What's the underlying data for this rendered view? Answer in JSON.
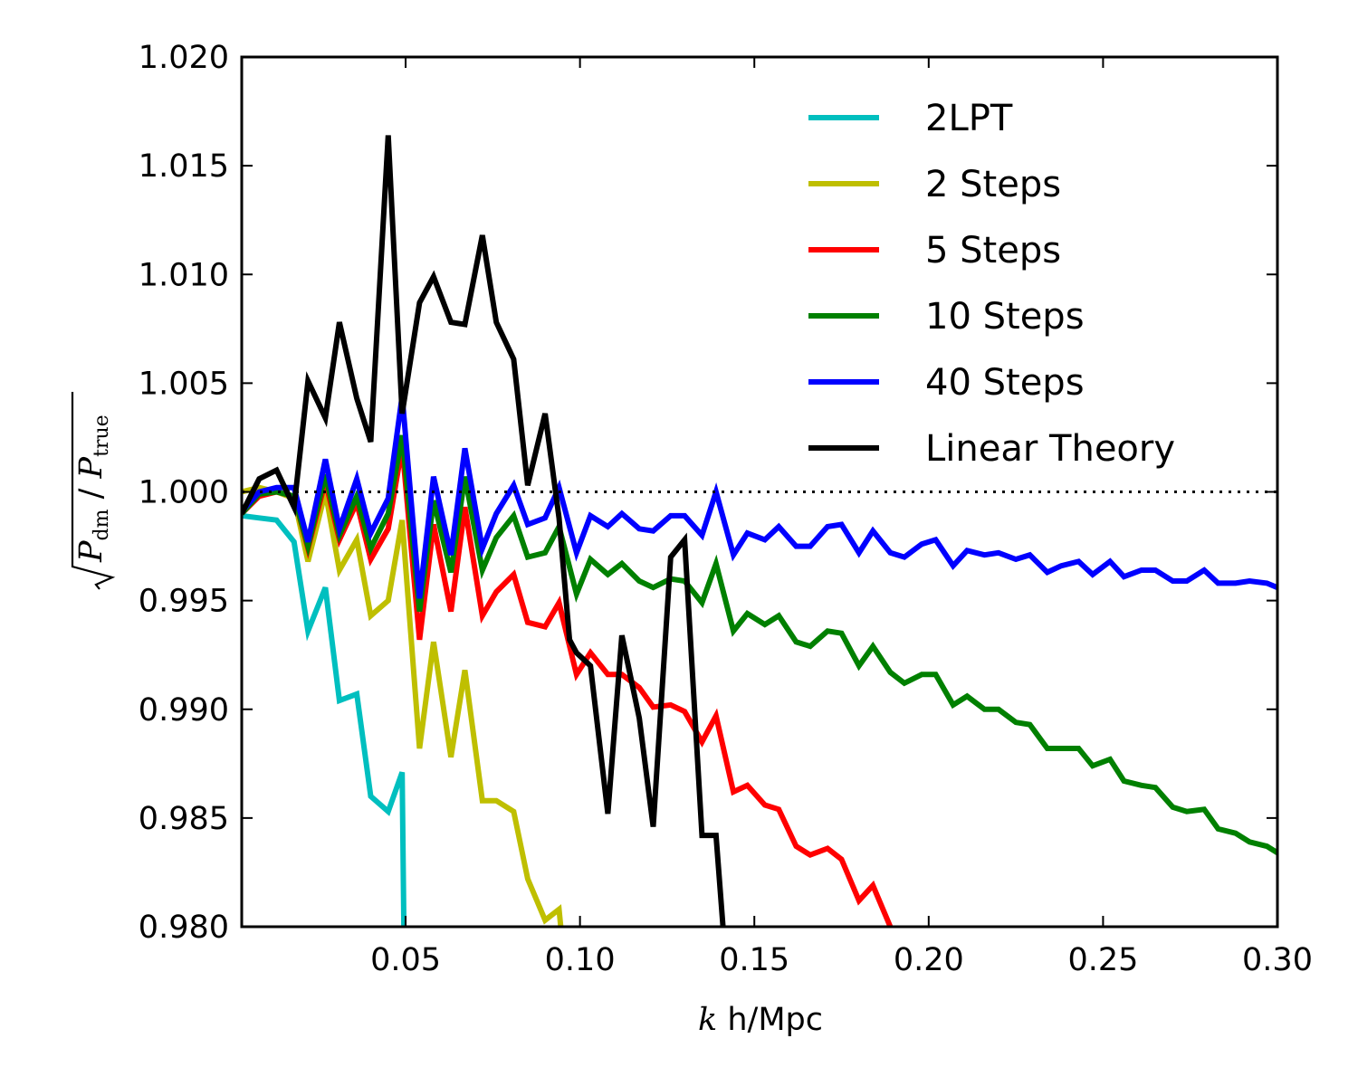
{
  "chart_data": {
    "type": "line",
    "title": "",
    "xlabel_var": "k",
    "xlabel_units": "h/Mpc",
    "ylabel_var": "P",
    "ylabel_sub_num": "dm",
    "ylabel_sub_den": "true",
    "xlim": [
      0.003,
      0.3
    ],
    "ylim": [
      0.98,
      1.02
    ],
    "xticks": [
      0.05,
      0.1,
      0.15,
      0.2,
      0.25,
      0.3
    ],
    "xtick_labels": [
      "0.05",
      "0.10",
      "0.15",
      "0.20",
      "0.25",
      "0.30"
    ],
    "yticks": [
      0.98,
      0.985,
      0.99,
      0.995,
      1.0,
      1.005,
      1.01,
      1.015,
      1.02
    ],
    "ytick_labels": [
      "0.980",
      "0.985",
      "0.990",
      "0.995",
      "1.000",
      "1.005",
      "1.010",
      "1.015",
      "1.020"
    ],
    "reference_line": {
      "y": 1.0,
      "style": "dotted"
    },
    "legend_position": "top-right",
    "series": [
      {
        "name": "2LPT",
        "color": "#00bfbf",
        "x": [
          0.003,
          0.008,
          0.013,
          0.018,
          0.022,
          0.027,
          0.031,
          0.036,
          0.04,
          0.045,
          0.049,
          0.0495
        ],
        "y": [
          0.9989,
          0.9988,
          0.9987,
          0.9977,
          0.9936,
          0.9956,
          0.9904,
          0.9907,
          0.986,
          0.9853,
          0.9871,
          0.98
        ]
      },
      {
        "name": "2 Steps",
        "color": "#bfbf00",
        "x": [
          0.003,
          0.008,
          0.013,
          0.018,
          0.022,
          0.027,
          0.031,
          0.036,
          0.04,
          0.045,
          0.049,
          0.054,
          0.058,
          0.063,
          0.067,
          0.072,
          0.076,
          0.081,
          0.085,
          0.09,
          0.094,
          0.0945
        ],
        "y": [
          1.0,
          1.0002,
          1.0,
          0.9997,
          0.9968,
          1.0,
          0.9964,
          0.9978,
          0.9943,
          0.995,
          0.9987,
          0.9882,
          0.9931,
          0.9878,
          0.9918,
          0.9858,
          0.9858,
          0.9853,
          0.9822,
          0.9803,
          0.9808,
          0.98
        ]
      },
      {
        "name": "5 Steps",
        "color": "#ff0000",
        "x": [
          0.003,
          0.008,
          0.013,
          0.018,
          0.022,
          0.027,
          0.031,
          0.036,
          0.04,
          0.045,
          0.049,
          0.054,
          0.058,
          0.063,
          0.067,
          0.072,
          0.076,
          0.081,
          0.085,
          0.09,
          0.094,
          0.099,
          0.103,
          0.108,
          0.112,
          0.117,
          0.121,
          0.126,
          0.13,
          0.135,
          0.139,
          0.144,
          0.148,
          0.153,
          0.157,
          0.162,
          0.166,
          0.171,
          0.175,
          0.18,
          0.184,
          0.189
        ],
        "y": [
          0.999,
          0.9998,
          1.0,
          0.9998,
          0.9974,
          1.0005,
          0.9978,
          0.9995,
          0.9969,
          0.9983,
          1.0021,
          0.9932,
          0.9985,
          0.9945,
          0.9993,
          0.9943,
          0.9954,
          0.9962,
          0.994,
          0.9938,
          0.9949,
          0.9916,
          0.9926,
          0.9916,
          0.9916,
          0.991,
          0.9901,
          0.9902,
          0.9899,
          0.9885,
          0.9897,
          0.9862,
          0.9865,
          0.9856,
          0.9854,
          0.9837,
          0.9833,
          0.9836,
          0.9831,
          0.9812,
          0.9819,
          0.98
        ]
      },
      {
        "name": "10 Steps",
        "color": "#008000",
        "x": [
          0.003,
          0.008,
          0.013,
          0.018,
          0.022,
          0.027,
          0.031,
          0.036,
          0.04,
          0.045,
          0.049,
          0.054,
          0.058,
          0.063,
          0.067,
          0.072,
          0.076,
          0.081,
          0.085,
          0.09,
          0.094,
          0.099,
          0.103,
          0.108,
          0.112,
          0.117,
          0.121,
          0.126,
          0.13,
          0.135,
          0.139,
          0.144,
          0.148,
          0.153,
          0.157,
          0.162,
          0.166,
          0.171,
          0.175,
          0.18,
          0.184,
          0.189,
          0.193,
          0.198,
          0.202,
          0.207,
          0.211,
          0.216,
          0.22,
          0.225,
          0.229,
          0.234,
          0.238,
          0.243,
          0.247,
          0.252,
          0.256,
          0.261,
          0.265,
          0.27,
          0.274,
          0.279,
          0.283,
          0.288,
          0.292,
          0.297,
          0.3
        ],
        "y": [
          0.999,
          0.9999,
          1.0,
          0.9998,
          0.9975,
          1.0008,
          0.998,
          0.9998,
          0.9974,
          0.999,
          1.0026,
          0.9945,
          0.9996,
          0.9963,
          1.0007,
          0.9964,
          0.9979,
          0.9989,
          0.997,
          0.9972,
          0.9984,
          0.9953,
          0.9969,
          0.9962,
          0.9967,
          0.9959,
          0.9956,
          0.996,
          0.9959,
          0.9949,
          0.9967,
          0.9936,
          0.9944,
          0.9939,
          0.9943,
          0.9931,
          0.9929,
          0.9936,
          0.9935,
          0.992,
          0.9929,
          0.9917,
          0.9912,
          0.9916,
          0.9916,
          0.9902,
          0.9906,
          0.99,
          0.99,
          0.9894,
          0.9893,
          0.9882,
          0.9882,
          0.9882,
          0.9874,
          0.9877,
          0.9867,
          0.9865,
          0.9864,
          0.9855,
          0.9853,
          0.9854,
          0.9845,
          0.9843,
          0.9839,
          0.9837,
          0.9834
        ]
      },
      {
        "name": "40 Steps",
        "color": "#0000ff",
        "x": [
          0.003,
          0.008,
          0.013,
          0.018,
          0.022,
          0.027,
          0.031,
          0.036,
          0.04,
          0.045,
          0.049,
          0.054,
          0.058,
          0.063,
          0.067,
          0.072,
          0.076,
          0.081,
          0.085,
          0.09,
          0.094,
          0.099,
          0.103,
          0.108,
          0.112,
          0.117,
          0.121,
          0.126,
          0.13,
          0.135,
          0.139,
          0.144,
          0.148,
          0.153,
          0.157,
          0.162,
          0.166,
          0.171,
          0.175,
          0.18,
          0.184,
          0.189,
          0.193,
          0.198,
          0.202,
          0.207,
          0.211,
          0.216,
          0.22,
          0.225,
          0.229,
          0.234,
          0.238,
          0.243,
          0.247,
          0.252,
          0.256,
          0.261,
          0.265,
          0.27,
          0.274,
          0.279,
          0.283,
          0.288,
          0.292,
          0.297,
          0.3
        ],
        "y": [
          0.9991,
          1.0,
          1.0002,
          1.0002,
          0.9977,
          1.0015,
          0.9983,
          1.0006,
          0.9981,
          0.9997,
          1.0044,
          0.9951,
          1.0007,
          0.9971,
          1.002,
          0.9974,
          0.999,
          1.0003,
          0.9985,
          0.9988,
          1.0002,
          0.9972,
          0.9989,
          0.9984,
          0.999,
          0.9983,
          0.9982,
          0.9989,
          0.9989,
          0.998,
          1.0,
          0.9971,
          0.9981,
          0.9978,
          0.9984,
          0.9975,
          0.9975,
          0.9984,
          0.9985,
          0.9972,
          0.9982,
          0.9972,
          0.997,
          0.9976,
          0.9978,
          0.9966,
          0.9973,
          0.9971,
          0.9972,
          0.9969,
          0.9971,
          0.9963,
          0.9966,
          0.9968,
          0.9962,
          0.9968,
          0.9961,
          0.9964,
          0.9964,
          0.9959,
          0.9959,
          0.9964,
          0.9958,
          0.9958,
          0.9959,
          0.9958,
          0.9956
        ]
      },
      {
        "name": "Linear Theory",
        "color": "#000000",
        "x": [
          0.003,
          0.008,
          0.013,
          0.018,
          0.022,
          0.027,
          0.031,
          0.036,
          0.04,
          0.045,
          0.049,
          0.054,
          0.058,
          0.063,
          0.067,
          0.072,
          0.076,
          0.081,
          0.085,
          0.09,
          0.094,
          0.097,
          0.099,
          0.103,
          0.108,
          0.112,
          0.117,
          0.121,
          0.126,
          0.13,
          0.135,
          0.139,
          0.141
        ],
        "y": [
          0.999,
          1.0006,
          1.001,
          0.9993,
          1.0051,
          1.0034,
          1.0078,
          1.0043,
          1.0023,
          1.0164,
          1.0036,
          1.0087,
          1.0099,
          1.0078,
          1.0077,
          1.0118,
          1.0078,
          1.0061,
          1.0003,
          1.0036,
          0.9988,
          0.9932,
          0.9926,
          0.992,
          0.9852,
          0.9934,
          0.9896,
          0.9846,
          0.997,
          0.9978,
          0.9842,
          0.9842,
          0.98
        ]
      }
    ]
  }
}
